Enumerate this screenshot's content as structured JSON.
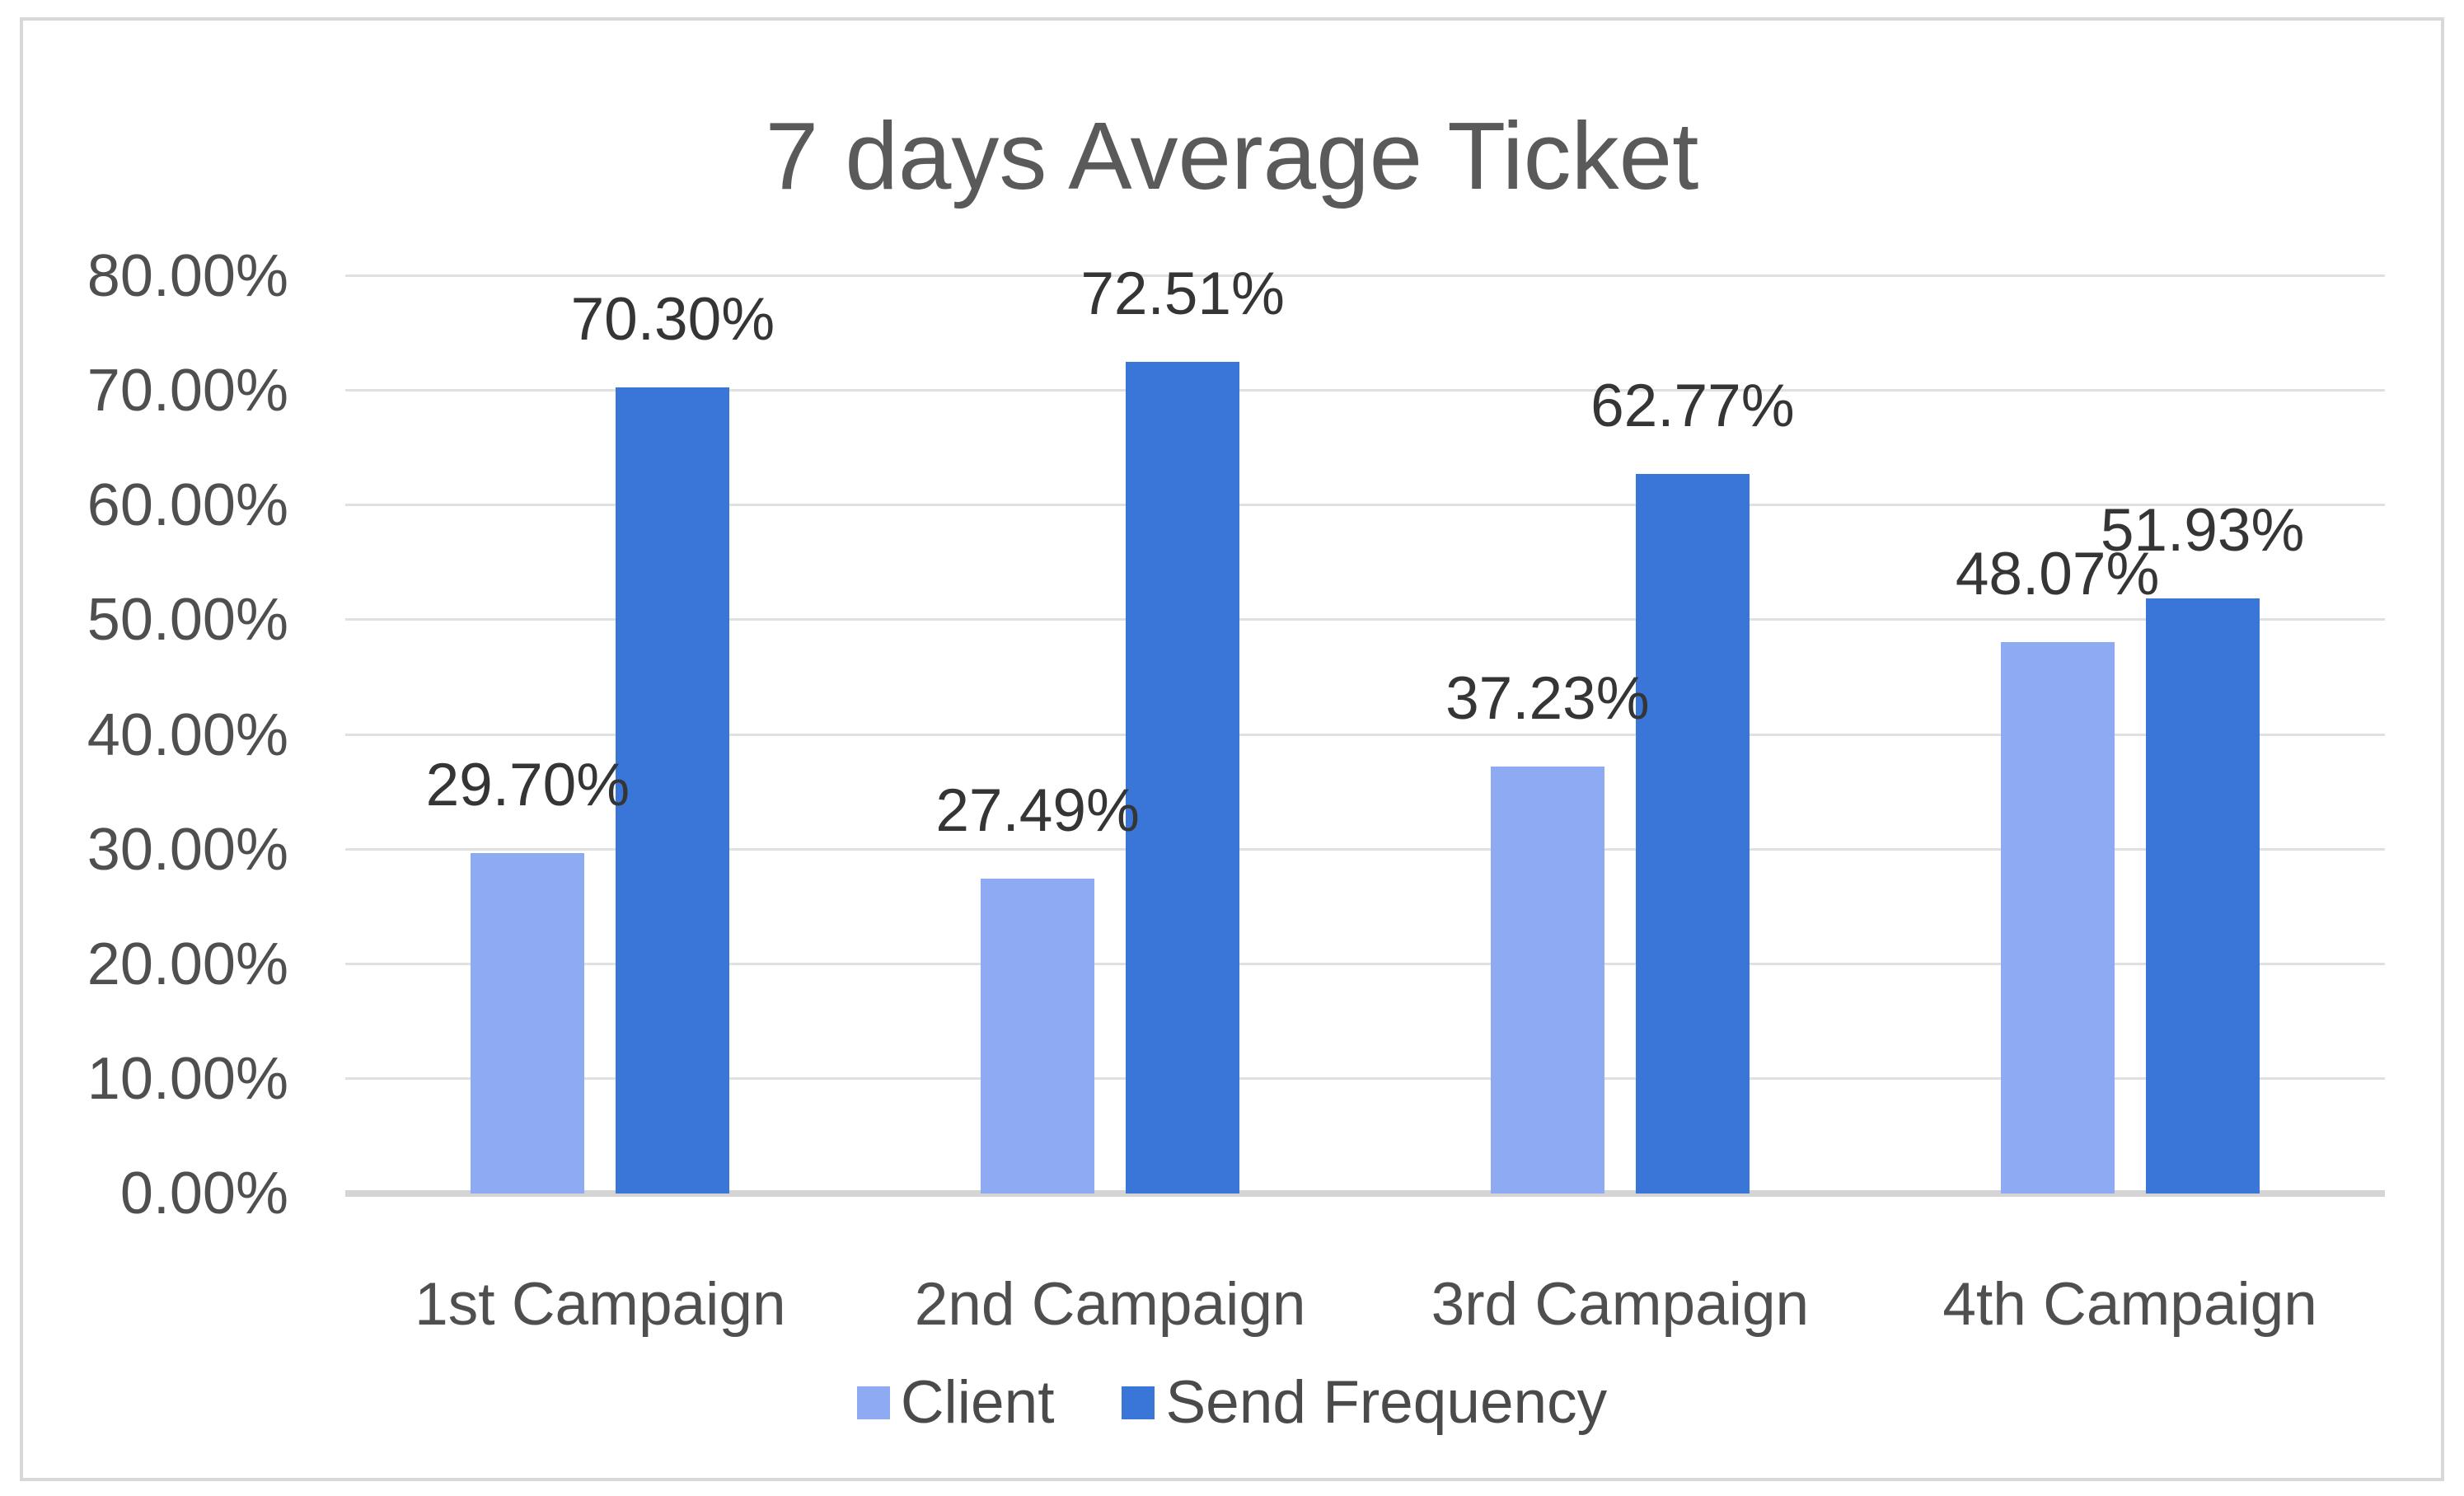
{
  "chart_data": {
    "type": "bar",
    "title": "7 days Average Ticket",
    "categories": [
      "1st Campaign",
      "2nd Campaign",
      "3rd Campaign",
      "4th Campaign"
    ],
    "series": [
      {
        "name": "Client",
        "color": "#8eaaf3",
        "values": [
          29.7,
          27.49,
          37.23,
          48.07
        ],
        "labels": [
          "29.70%",
          "27.49%",
          "37.23%",
          "48.07%"
        ]
      },
      {
        "name": "Send Frequency",
        "color": "#3a76d8",
        "values": [
          70.3,
          72.51,
          62.77,
          51.93
        ],
        "labels": [
          "70.30%",
          "72.51%",
          "62.77%",
          "51.93%"
        ]
      }
    ],
    "y_axis": {
      "min": 0,
      "max": 80,
      "step": 10,
      "tick_labels": [
        "0.00%",
        "10.00%",
        "20.00%",
        "30.00%",
        "40.00%",
        "50.00%",
        "60.00%",
        "70.00%",
        "80.00%"
      ]
    },
    "x_axis": {
      "labels": [
        "1st Campaign",
        "2nd Campaign",
        "3rd Campaign",
        "4th Campaign"
      ]
    },
    "legend": {
      "position": "bottom",
      "items": [
        "Client",
        "Send Frequency"
      ]
    },
    "grid": true,
    "colors": {
      "series_client": "#8eaaf3",
      "series_send_frequency": "#3a76d8",
      "gridline": "#e0e0e0",
      "axis_line": "#d4d4d4",
      "title_text": "#5a5a5a",
      "axis_text": "#4f4f4f",
      "data_label_text": "#353535",
      "frame_border": "#d8d8d8"
    }
  }
}
